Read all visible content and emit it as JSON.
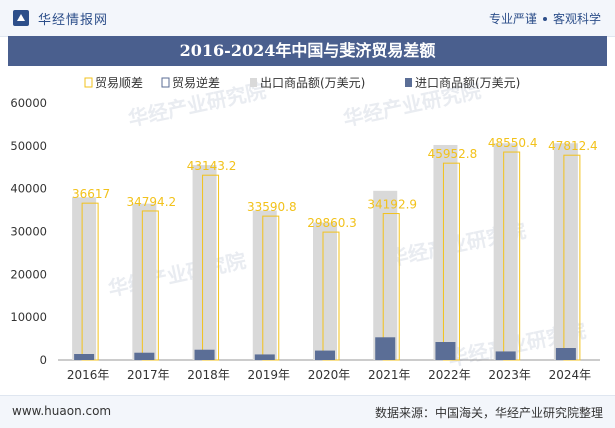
{
  "header": {
    "brand": "华经情报网",
    "tagline_left": "专业严谨",
    "tagline_right": "客观科学"
  },
  "footer": {
    "website": "www.huaon.com",
    "source": "数据来源：中国海关，华经产业研究院整理"
  },
  "watermark": "华经产业研究院",
  "colors": {
    "export_bar": "#d9d9d9",
    "import_bar": "#5b6e96",
    "surplus": "#f2c21b",
    "deficit": "#5b6e96"
  },
  "chart_data": {
    "type": "bar",
    "title": "2016-2024年中国与斐济贸易差额",
    "categories": [
      "2016年",
      "2017年",
      "2018年",
      "2019年",
      "2020年",
      "2021年",
      "2022年",
      "2023年",
      "2024年"
    ],
    "ylim": [
      0,
      60000
    ],
    "yticks": [
      "0",
      "10000",
      "20000",
      "30000",
      "40000",
      "50000",
      "60000"
    ],
    "legend_position": "top-center",
    "legend": [
      "贸易顺差",
      "贸易逆差",
      "出口商品额(万美元)",
      "进口商品额(万美元)"
    ],
    "series": [
      {
        "name": "出口商品额(万美元)",
        "values": [
          38000,
          36500,
          45500,
          34900,
          32100,
          39500,
          50200,
          50600,
          50600
        ]
      },
      {
        "name": "进口商品额(万美元)",
        "values": [
          1400,
          1700,
          2400,
          1300,
          2200,
          5300,
          4200,
          2000,
          2800
        ]
      },
      {
        "name": "贸易顺差",
        "values": [
          36617,
          34794.2,
          43143.2,
          33590.8,
          29860.3,
          34192.9,
          45952.8,
          48550.4,
          47812.4
        ]
      }
    ],
    "data_labels": [
      "36617",
      "34794.2",
      "43143.2",
      "33590.8",
      "29860.3",
      "34192.9",
      "45952.8",
      "48550.4",
      "47812.4"
    ]
  }
}
